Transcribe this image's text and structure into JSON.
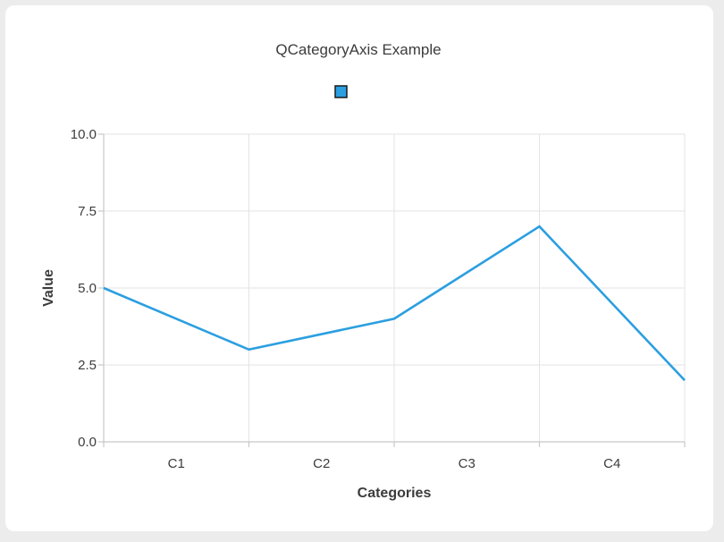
{
  "chart_data": {
    "type": "line",
    "title": "QCategoryAxis Example",
    "xlabel": "Categories",
    "ylabel": "Value",
    "categories": [
      "C1",
      "C2",
      "C3",
      "C4"
    ],
    "x": [
      0,
      1,
      2,
      3,
      4
    ],
    "series": [
      {
        "color": "#2b9fe0",
        "values": [
          5,
          3,
          4,
          7,
          2
        ]
      }
    ],
    "ylim": [
      0,
      10
    ],
    "yticks": [
      "0.0",
      "2.5",
      "5.0",
      "7.5",
      "10.0"
    ],
    "ytick_values": [
      0,
      2.5,
      5,
      7.5,
      10
    ],
    "xlim": [
      0,
      4
    ],
    "grid": true,
    "legend": "top-center",
    "legend_color": "#2b9fe0"
  }
}
